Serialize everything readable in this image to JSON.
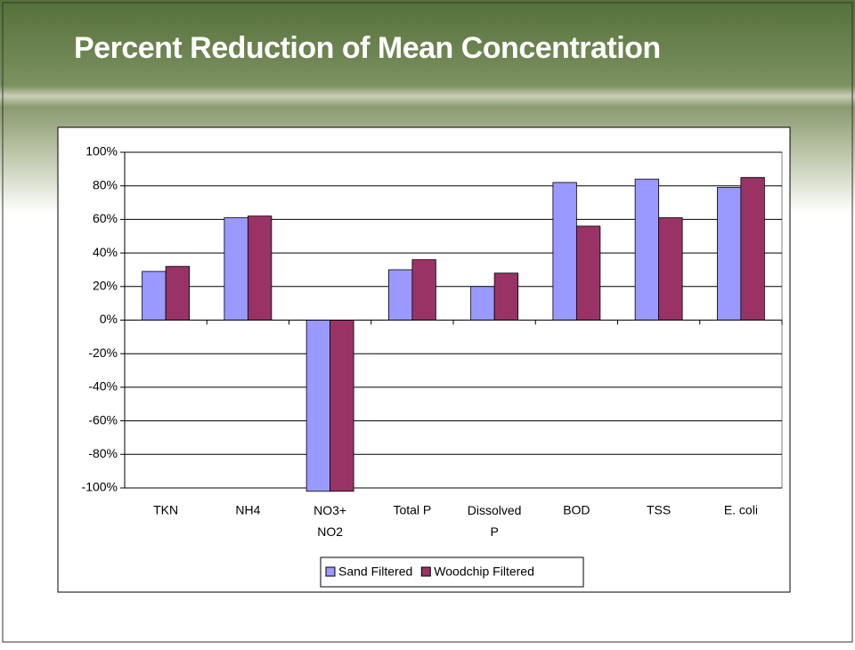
{
  "chart_data": {
    "type": "bar",
    "title": "Percent Reduction of Mean Concentration",
    "categories": [
      "TKN",
      "NH4",
      "NO3+ NO2",
      "Total P",
      "Dissolved P",
      "BOD",
      "TSS",
      "E. coli"
    ],
    "series": [
      {
        "name": "Sand Filtered",
        "color": "#9999ff",
        "values": [
          29,
          61,
          -102,
          30,
          20,
          82,
          84,
          79
        ]
      },
      {
        "name": "Woodchip Filtered",
        "color": "#993366",
        "values": [
          32,
          62,
          -102,
          36,
          28,
          56,
          61,
          85
        ]
      }
    ],
    "ylim": [
      -100,
      100
    ],
    "yticks": [
      {
        "value": -100,
        "label": "-100%"
      },
      {
        "value": -80,
        "label": "-80%"
      },
      {
        "value": -60,
        "label": "-60%"
      },
      {
        "value": -40,
        "label": "-40%"
      },
      {
        "value": -20,
        "label": "-20%"
      },
      {
        "value": 0,
        "label": "0%"
      },
      {
        "value": 20,
        "label": "20%"
      },
      {
        "value": 40,
        "label": "40%"
      },
      {
        "value": 60,
        "label": "60%"
      },
      {
        "value": 80,
        "label": "80%"
      },
      {
        "value": 100,
        "label": "100%"
      }
    ],
    "grid": true,
    "legend": "bottom"
  }
}
